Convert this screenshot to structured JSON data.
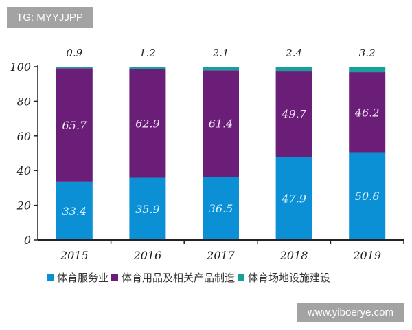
{
  "watermarks": {
    "top": "TG: MYYJJPP",
    "bottom": "www.yiboerye.com"
  },
  "chart_data": {
    "type": "bar",
    "stacked": true,
    "categories": [
      "2015",
      "2016",
      "2017",
      "2018",
      "2019"
    ],
    "series": [
      {
        "name": "体育服务业",
        "values": [
          33.4,
          35.9,
          36.5,
          47.9,
          50.6
        ],
        "color": "#0b8fd5"
      },
      {
        "name": "体育用品及相关产品制造",
        "values": [
          65.7,
          62.9,
          61.4,
          49.7,
          46.2
        ],
        "color": "#6a1e78"
      },
      {
        "name": "体育场地设施建设",
        "values": [
          0.9,
          1.2,
          2.1,
          2.4,
          3.2
        ],
        "color": "#17a09b"
      }
    ],
    "ylim": [
      0,
      100
    ],
    "yticks": [
      0,
      20,
      40,
      60,
      80,
      100
    ],
    "grid": false,
    "legend": "bottom"
  }
}
